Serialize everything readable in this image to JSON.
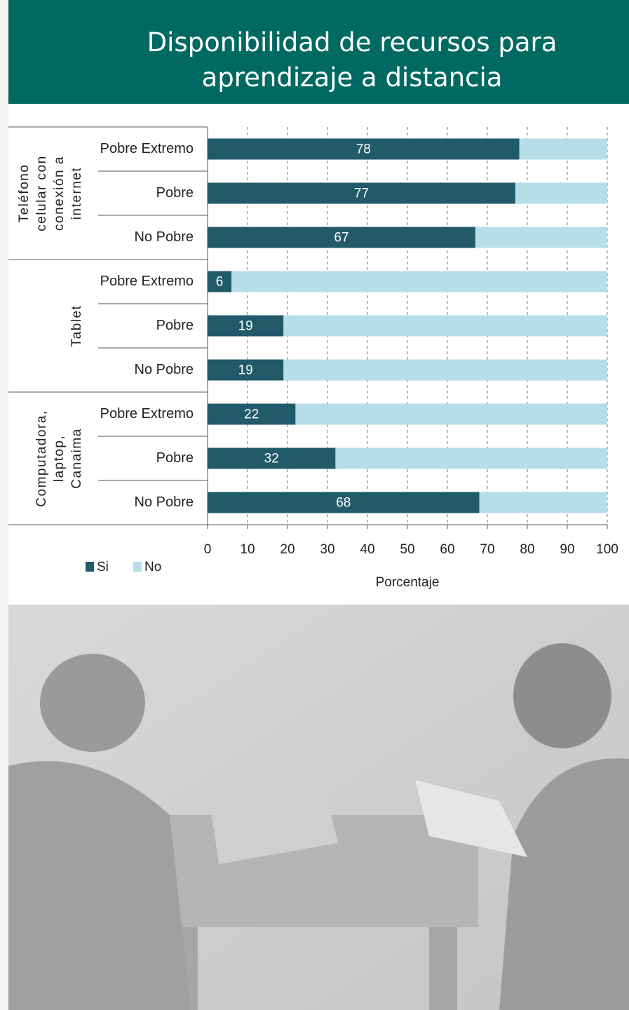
{
  "chart_data": {
    "type": "bar",
    "orientation": "horizontal",
    "stacked": true,
    "title": "Disponibilidad de recursos para aprendizaje a distancia",
    "groups": [
      {
        "label": [
          "Teléfono",
          "celular con",
          "conexión a",
          "internet"
        ],
        "categories": [
          "Pobre Extremo",
          "Pobre",
          "No Pobre"
        ]
      },
      {
        "label": [
          "Tablet"
        ],
        "categories": [
          "Pobre Extremo",
          "Pobre",
          "No Pobre"
        ]
      },
      {
        "label": [
          "Computadora,",
          "laptop,",
          "Canaima"
        ],
        "categories": [
          "Pobre Extremo",
          "Pobre",
          "No Pobre"
        ]
      }
    ],
    "series": [
      {
        "name": "Si",
        "color": "#215a69",
        "values": [
          78,
          77,
          67,
          6,
          19,
          19,
          22,
          32,
          68
        ],
        "labels": true
      },
      {
        "name": "No",
        "color": "#b7dee8",
        "values": [
          22,
          23,
          33,
          94,
          81,
          81,
          78,
          68,
          32
        ],
        "labels": false
      }
    ],
    "xlabel": "Porcentaje",
    "xlim": [
      0,
      100
    ],
    "xticks": [
      0,
      10,
      20,
      30,
      40,
      50,
      60,
      70,
      80,
      90,
      100
    ],
    "grid": true,
    "legend": "bottom-left"
  }
}
